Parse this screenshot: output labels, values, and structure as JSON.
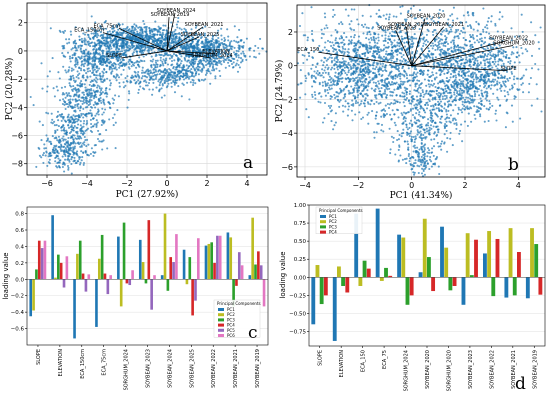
{
  "chart_data": [
    {
      "panel": "a",
      "type": "scatter",
      "panel_label": "a",
      "xlabel": "PC1 (27.92%)",
      "ylabel": "PC2 (20.28%)",
      "xlim": [
        -7,
        5
      ],
      "ylim": [
        -8.8,
        3.4
      ],
      "xticks": [
        -6,
        -4,
        -2,
        0,
        2,
        4
      ],
      "yticks": [
        -8,
        -6,
        -4,
        -2,
        0,
        2
      ],
      "point_color": "#1f77b4",
      "loadings": [
        {
          "label": "SOYBEAN_2024",
          "x": 0.4,
          "y": 2.7
        },
        {
          "label": "SOYBEAN_2019",
          "x": 0.1,
          "y": 2.4
        },
        {
          "label": "ECA_75cm",
          "x": -2.4,
          "y": 1.6
        },
        {
          "label": "ECA_150cm",
          "x": -3.2,
          "y": 1.3
        },
        {
          "label": "SOYBEAN_2021",
          "x": 1.8,
          "y": 1.7
        },
        {
          "label": "SOYBEAN_2025",
          "x": 1.6,
          "y": 1.0
        },
        {
          "label": "ELEVATION",
          "x": 2.4,
          "y": -0.2
        },
        {
          "label": "SORGHUM_2024",
          "x": 2.2,
          "y": -0.5
        },
        {
          "label": "SLOPE",
          "x": -2.3,
          "y": -0.5
        }
      ]
    },
    {
      "panel": "b",
      "type": "scatter",
      "panel_label": "b",
      "xlabel": "PC1 (41.34%)",
      "ylabel": "PC2 (24.79%)",
      "xlim": [
        -4.3,
        5
      ],
      "ylim": [
        -6.6,
        3.6
      ],
      "xticks": [
        -4,
        -2,
        0,
        2,
        4
      ],
      "yticks": [
        -6,
        -4,
        -2,
        0,
        2
      ],
      "point_color": "#1f77b4",
      "loadings": [
        {
          "label": "SOYBEAN_2020",
          "x": 0.5,
          "y": 2.8
        },
        {
          "label": "SOYBEAN_2019",
          "x": -0.2,
          "y": 2.3
        },
        {
          "label": "SOYBEAN_2023",
          "x": -0.6,
          "y": 2.1
        },
        {
          "label": "SOYBEAN_2021",
          "x": 1.2,
          "y": 2.3
        },
        {
          "label": "SOYBEAN_2022",
          "x": 3.6,
          "y": 1.5
        },
        {
          "label": "SORGHUM_2020",
          "x": 3.8,
          "y": 1.2
        },
        {
          "label": "ECA_150",
          "x": -3.5,
          "y": 0.8
        },
        {
          "label": "SLOPE",
          "x": 3.6,
          "y": -0.3
        }
      ]
    },
    {
      "panel": "c",
      "type": "bar",
      "panel_label": "c",
      "ylabel": "loading value",
      "ylim": [
        -0.8,
        0.88
      ],
      "yticks": [
        -0.6,
        -0.4,
        -0.2,
        0.0,
        0.2,
        0.4,
        0.6,
        0.8
      ],
      "categories": [
        "SLOPE",
        "ELEVATION",
        "ECA_150cm",
        "ECA_75cm",
        "SORGHUM_2024",
        "SOYBEAN_2023",
        "SOYBEAN_2024",
        "SOYBEAN_2025",
        "SOYBEAN_2022",
        "SOYBEAN_2021",
        "SOYBEAN_2019"
      ],
      "legend_title": "Principal Components",
      "legend_position": "lower-right",
      "series": [
        {
          "name": "PC1",
          "color": "#1f77b4",
          "values": [
            -0.45,
            0.78,
            -0.72,
            -0.58,
            0.52,
            0.48,
            0.05,
            0.36,
            0.41,
            0.57,
            0.05
          ]
        },
        {
          "name": "PC2",
          "color": "#bcbd22",
          "values": [
            -0.38,
            0.02,
            0.31,
            0.25,
            -0.33,
            0.21,
            0.8,
            -0.06,
            0.43,
            0.51,
            0.75
          ]
        },
        {
          "name": "PC3",
          "color": "#2ca02c",
          "values": [
            0.12,
            0.3,
            0.47,
            0.54,
            0.69,
            -0.05,
            -0.14,
            0.27,
            0.45,
            -0.33,
            0.18
          ]
        },
        {
          "name": "PC4",
          "color": "#d62728",
          "values": [
            0.47,
            0.2,
            0.07,
            0.07,
            -0.05,
            0.72,
            0.27,
            -0.44,
            0.2,
            -0.08,
            0.34
          ]
        },
        {
          "name": "PC5",
          "color": "#9467bd",
          "values": [
            0.38,
            -0.1,
            -0.15,
            -0.18,
            -0.07,
            -0.37,
            0.21,
            -0.26,
            0.53,
            0.33,
            0.17
          ]
        },
        {
          "name": "PC6",
          "color": "#e377c2",
          "values": [
            0.47,
            0.28,
            0.06,
            0.05,
            0.11,
            0.05,
            0.55,
            0.5,
            0.53,
            0.17,
            -0.33
          ]
        }
      ]
    },
    {
      "panel": "d",
      "type": "bar",
      "panel_label": "d",
      "ylabel": "loading value",
      "ylim": [
        -0.95,
        1.0
      ],
      "yticks": [
        -0.75,
        -0.5,
        -0.25,
        0.0,
        0.25,
        0.5,
        0.75,
        1.0
      ],
      "categories": [
        "SLOPE",
        "ELEVATION",
        "ECA_150",
        "ECA_75",
        "SORGHUM_2024",
        "SOYBEAN_2020",
        "SORGHUM_2020",
        "SOYBEAN_2023",
        "SOYBEAN_2022",
        "SOYBEAN_2021",
        "SOYBEAN_2019"
      ],
      "legend_title": "Principal Components",
      "legend_position": "top-left",
      "series": [
        {
          "name": "PC1",
          "color": "#1f77b4",
          "values": [
            -0.65,
            -0.88,
            0.88,
            0.95,
            0.59,
            0.07,
            0.7,
            -0.38,
            0.33,
            -0.28,
            -0.29
          ]
        },
        {
          "name": "PC2",
          "color": "#bcbd22",
          "values": [
            0.17,
            0.15,
            -0.12,
            -0.05,
            0.55,
            0.81,
            0.41,
            0.61,
            0.64,
            0.68,
            0.68
          ]
        },
        {
          "name": "PC3",
          "color": "#2ca02c",
          "values": [
            -0.37,
            -0.12,
            0.23,
            0.13,
            -0.38,
            0.28,
            -0.18,
            0.03,
            -0.26,
            -0.25,
            0.46
          ]
        },
        {
          "name": "PC4",
          "color": "#d62728",
          "values": [
            -0.25,
            -0.21,
            0.12,
            0.02,
            -0.25,
            -0.19,
            -0.12,
            0.52,
            0.53,
            0.35,
            -0.24
          ]
        }
      ]
    }
  ]
}
